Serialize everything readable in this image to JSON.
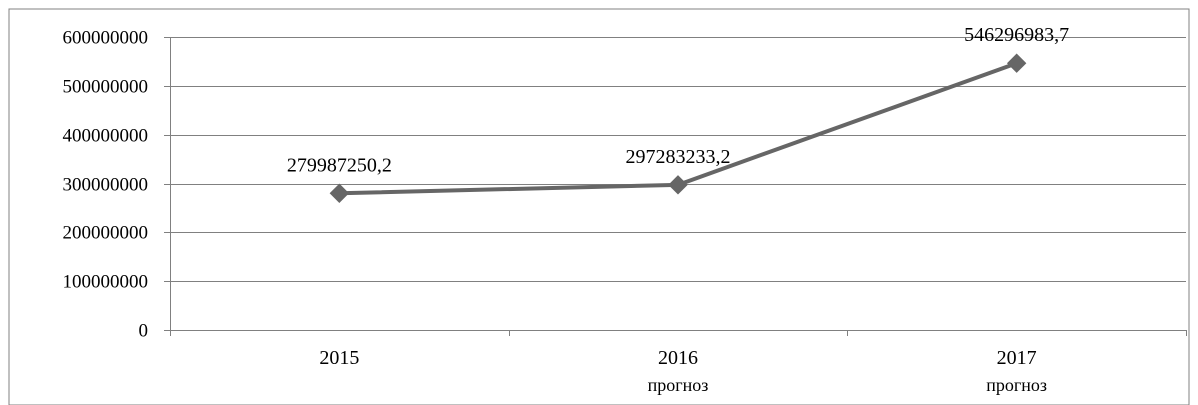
{
  "chart_data": {
    "type": "line",
    "categories": [
      "2015",
      "2016",
      "2017"
    ],
    "category_sublabels": [
      "",
      "прогноз",
      "прогноз"
    ],
    "series": [
      {
        "values": [
          279987250.2,
          297283233.2,
          546296983.7
        ],
        "data_labels": [
          "279987250,2",
          "297283233,2",
          "546296983,7"
        ],
        "color": "#666666",
        "marker": "diamond"
      }
    ],
    "y_ticks": [
      0,
      100000000,
      200000000,
      300000000,
      400000000,
      500000000,
      600000000
    ],
    "y_tick_labels": [
      "0",
      "100000000",
      "200000000",
      "300000000",
      "400000000",
      "500000000",
      "600000000"
    ],
    "ylim": [
      0,
      600000000
    ],
    "title": "",
    "xlabel": "",
    "ylabel": "",
    "grid": true,
    "legend": "none"
  },
  "colors": {
    "gridline": "#808080",
    "axis": "#808080",
    "frame": "#808080"
  }
}
